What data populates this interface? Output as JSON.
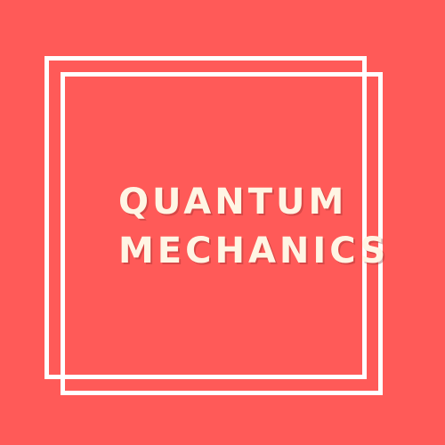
{
  "colors": {
    "background": "#ff5a58",
    "frame": "#ffffff",
    "title_text": "#fff5e4"
  },
  "title": {
    "line1": "QUANTUM",
    "line2": "MECHANICS"
  }
}
